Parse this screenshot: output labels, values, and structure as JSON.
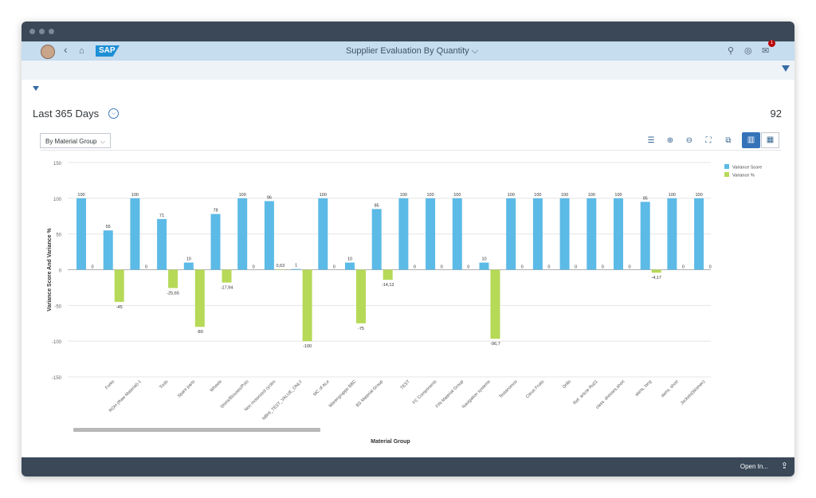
{
  "shell": {
    "title": "Supplier Evaluation By Quantity",
    "title_chevron": "⌵",
    "logo": "SAP",
    "back_icon": "‹",
    "home_icon": "⌂",
    "search_icon": "⚲",
    "settings_icon": "◎",
    "notifications_icon": "✉",
    "notification_count": "1"
  },
  "header": {
    "title": "Last 365 Days",
    "chevron": "⌵",
    "count": "92"
  },
  "toolbar": {
    "view_selector": "By Material Group",
    "dropdown_arrow": "⌵",
    "legend_toggle_icon": "☰",
    "zoom_in_icon": "⊕",
    "zoom_out_icon": "⊖",
    "fullscreen_icon": "⛶",
    "dimensions_icon": "⧉",
    "chart_view_icon": "▥",
    "table_view_icon": "▦"
  },
  "footer": {
    "open_in": "Open In...",
    "share_icon": "⇪"
  },
  "chart_data": {
    "type": "bar",
    "ylabel": "Variance Score And Variance %",
    "xlabel": "Material Group",
    "ylim": [
      -150,
      150
    ],
    "yticks": [
      150,
      100,
      50,
      0,
      -50,
      -100,
      -150
    ],
    "colors": {
      "score": "#5cbae6",
      "percent": "#b6d957"
    },
    "legend_position": "top-right",
    "categories": [
      "",
      "Forks",
      "ROH (Raw Material)-1",
      "Tools",
      "Spare parts",
      "Wheels",
      "Shirts/Blouses/Polo",
      "Non motorized cycles",
      "NBHI_TEST_VALUE_ONLY",
      "MC of ALe",
      "Warengruppe BBC",
      "BS Material Group",
      "TEST",
      "FC Components",
      "FIN Material Group",
      "Navigation systems",
      "Testanomos",
      "Citrus Fruits",
      "Drills",
      "Ref. article Ru01",
      "class. dresses,short",
      "skirts, long",
      "skirts, short",
      "Jackets(Women)"
    ],
    "series": [
      {
        "name": "Variance Score",
        "values": [
          100,
          55,
          100,
          71,
          10,
          78,
          100,
          96,
          1,
          100,
          10,
          85,
          100,
          100,
          100,
          10,
          100,
          100,
          100,
          100,
          100,
          95,
          100,
          100
        ],
        "labels": [
          "100",
          "55",
          "100",
          "71",
          "10",
          "78",
          "100",
          "96",
          "1",
          "100",
          "10",
          "85",
          "100",
          "100",
          "100",
          "10",
          "100",
          "100",
          "100",
          "100",
          "100",
          "95",
          "100",
          "100"
        ]
      },
      {
        "name": "Variance %",
        "values": [
          0,
          -45,
          0,
          -25.65,
          -80,
          -17.94,
          0,
          0.63,
          -100,
          0,
          -75,
          -14.13,
          0,
          0,
          0,
          -96.7,
          0,
          0,
          0,
          0,
          0,
          -4.17,
          0,
          0
        ],
        "labels": [
          "0",
          "-45",
          "0",
          "-25,65",
          "-80",
          "-17,94",
          "0",
          "0,63",
          "-100",
          "0",
          "-75",
          "-14,13",
          "0",
          "0",
          "0",
          "-96,7",
          "0",
          "0",
          "0",
          "0",
          "0",
          "-4,17",
          "0",
          "0"
        ]
      }
    ]
  }
}
